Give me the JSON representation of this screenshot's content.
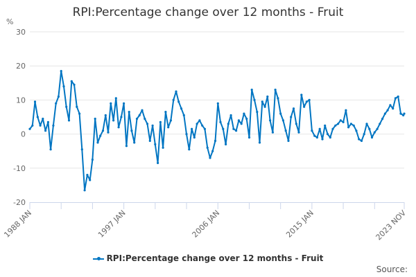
{
  "chart_data": {
    "type": "line",
    "title": "RPI:Percentage change over 12 months - Fruit",
    "xlabel": "",
    "ylabel": "%",
    "ylim": [
      -20,
      30
    ],
    "yticks": [
      30,
      20,
      10,
      0,
      -10,
      -20
    ],
    "xtick_labels": [
      "1988 JAN",
      "1997 JAN",
      "2006 JAN",
      "2015 JAN",
      "2023 NOV"
    ],
    "grid": true,
    "legend_position": "bottom",
    "series": [
      {
        "name": "RPI:Percentage change over 12 months - Fruit",
        "color": "#0075c2",
        "x": [
          "1988-01",
          "1988-04",
          "1988-07",
          "1988-10",
          "1989-01",
          "1989-04",
          "1989-07",
          "1989-10",
          "1990-01",
          "1990-04",
          "1990-07",
          "1990-10",
          "1991-01",
          "1991-04",
          "1991-07",
          "1991-10",
          "1992-01",
          "1992-04",
          "1992-07",
          "1992-10",
          "1993-01",
          "1993-04",
          "1993-07",
          "1993-10",
          "1994-01",
          "1994-04",
          "1994-07",
          "1994-10",
          "1995-01",
          "1995-04",
          "1995-07",
          "1995-10",
          "1996-01",
          "1996-04",
          "1996-07",
          "1996-10",
          "1997-01",
          "1997-04",
          "1997-07",
          "1997-10",
          "1998-01",
          "1998-04",
          "1998-07",
          "1998-10",
          "1999-01",
          "1999-04",
          "1999-07",
          "1999-10",
          "2000-01",
          "2000-04",
          "2000-07",
          "2000-10",
          "2001-01",
          "2001-04",
          "2001-07",
          "2001-10",
          "2002-01",
          "2002-04",
          "2002-07",
          "2002-10",
          "2003-01",
          "2003-04",
          "2003-07",
          "2003-10",
          "2004-01",
          "2004-04",
          "2004-07",
          "2004-10",
          "2005-01",
          "2005-04",
          "2005-07",
          "2005-10",
          "2006-01",
          "2006-04",
          "2006-07",
          "2006-10",
          "2007-01",
          "2007-04",
          "2007-07",
          "2007-10",
          "2008-01",
          "2008-04",
          "2008-07",
          "2008-10",
          "2009-01",
          "2009-04",
          "2009-07",
          "2009-10",
          "2010-01",
          "2010-04",
          "2010-07",
          "2010-10",
          "2011-01",
          "2011-04",
          "2011-07",
          "2011-10",
          "2012-01",
          "2012-04",
          "2012-07",
          "2012-10",
          "2013-01",
          "2013-04",
          "2013-07",
          "2013-10",
          "2014-01",
          "2014-04",
          "2014-07",
          "2014-10",
          "2015-01",
          "2015-04",
          "2015-07",
          "2015-10",
          "2016-01",
          "2016-04",
          "2016-07",
          "2016-10",
          "2017-01",
          "2017-04",
          "2017-07",
          "2017-10",
          "2018-01",
          "2018-04",
          "2018-07",
          "2018-10",
          "2019-01",
          "2019-04",
          "2019-07",
          "2019-10",
          "2020-01",
          "2020-04",
          "2020-07",
          "2020-10",
          "2021-01",
          "2021-04",
          "2021-07",
          "2021-10",
          "2022-01",
          "2022-04",
          "2022-07",
          "2022-10",
          "2023-01",
          "2023-04",
          "2023-07",
          "2023-10",
          "2023-11"
        ],
        "values": [
          1.5,
          2.5,
          9.5,
          5.0,
          2.5,
          4.5,
          1.0,
          3.5,
          -4.5,
          2.5,
          9.0,
          11.0,
          18.5,
          14.0,
          8.0,
          4.0,
          15.5,
          14.5,
          8.0,
          6.0,
          -4.5,
          -16.5,
          -12.0,
          -13.5,
          -7.5,
          4.5,
          -2.5,
          -0.5,
          1.0,
          5.5,
          0.5,
          9.0,
          4.0,
          10.5,
          2.0,
          5.0,
          9.0,
          -3.5,
          6.5,
          1.0,
          -2.5,
          4.5,
          5.5,
          7.0,
          4.5,
          3.0,
          -2.0,
          2.5,
          -3.0,
          -8.5,
          3.5,
          -4.0,
          6.5,
          2.0,
          4.0,
          10.0,
          12.5,
          9.5,
          7.5,
          5.5,
          0.0,
          -4.5,
          1.5,
          -1.0,
          3.0,
          4.0,
          2.5,
          1.5,
          -4.0,
          -7.0,
          -5.0,
          -2.0,
          9.0,
          3.5,
          1.5,
          -3.0,
          3.0,
          5.5,
          1.5,
          1.0,
          4.0,
          3.0,
          6.0,
          4.5,
          -1.0,
          13.0,
          10.0,
          6.5,
          -2.5,
          9.5,
          8.0,
          11.0,
          4.0,
          0.5,
          13.0,
          10.5,
          6.0,
          4.0,
          1.0,
          -2.0,
          5.0,
          7.5,
          3.0,
          0.5,
          11.5,
          8.0,
          9.5,
          10.0,
          1.0,
          -0.5,
          -1.0,
          1.5,
          -1.5,
          2.5,
          0.0,
          -1.0,
          1.5,
          2.5,
          3.0,
          4.0,
          3.5,
          7.0,
          2.0,
          3.0,
          2.5,
          1.0,
          -1.5,
          -2.0,
          0.0,
          3.0,
          1.5,
          -1.0,
          0.5,
          1.5,
          3.0,
          4.5,
          6.0,
          7.0,
          8.5,
          7.5,
          10.5,
          11.0,
          6.0,
          5.5,
          6.0
        ]
      }
    ]
  },
  "header": {
    "title": "RPI:Percentage change over 12 months - Fruit",
    "unit_label": "%"
  },
  "legend": {
    "label": "RPI:Percentage change over 12 months - Fruit"
  },
  "footer": {
    "source_label": "Source:"
  }
}
